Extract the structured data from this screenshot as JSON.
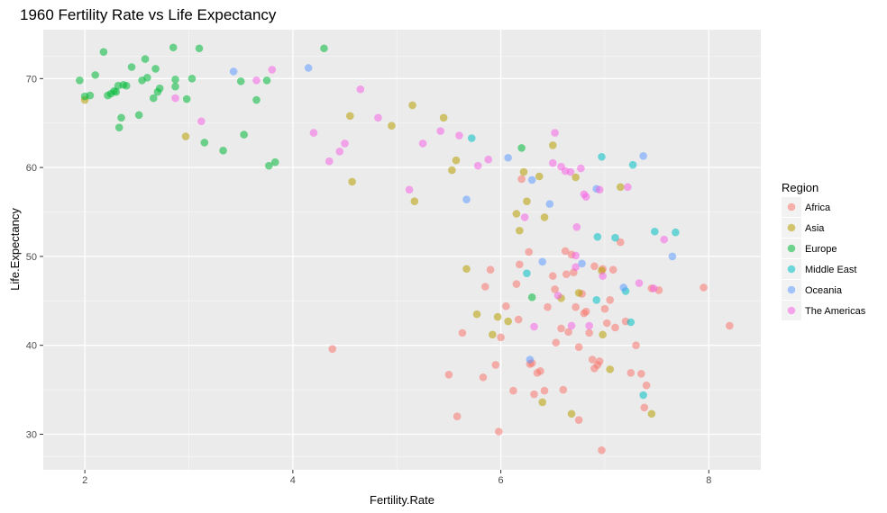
{
  "chart_data": {
    "type": "scatter",
    "title": "1960 Fertility Rate vs Life Expectancy",
    "xlabel": "Fertility.Rate",
    "ylabel": "Life.Expectancy",
    "xlim": [
      1.6,
      8.5
    ],
    "ylim": [
      26,
      75.5
    ],
    "x_ticks": [
      2,
      4,
      6,
      8
    ],
    "y_ticks": [
      30,
      40,
      50,
      60,
      70
    ],
    "grid": true,
    "legend_title": "Region",
    "legend_position": "right",
    "series": [
      {
        "name": "Africa",
        "color": "#F8766D",
        "points": [
          [
            4.38,
            39.6
          ],
          [
            5.5,
            36.7
          ],
          [
            5.58,
            32.0
          ],
          [
            5.63,
            41.4
          ],
          [
            5.83,
            36.4
          ],
          [
            5.85,
            46.6
          ],
          [
            5.9,
            48.5
          ],
          [
            5.95,
            37.8
          ],
          [
            5.98,
            30.3
          ],
          [
            6.0,
            40.9
          ],
          [
            6.12,
            34.9
          ],
          [
            6.15,
            46.9
          ],
          [
            6.18,
            49.1
          ],
          [
            6.2,
            58.7
          ],
          [
            6.27,
            50.5
          ],
          [
            6.28,
            37.9
          ],
          [
            6.3,
            38.0
          ],
          [
            6.32,
            34.5
          ],
          [
            6.35,
            36.9
          ],
          [
            6.38,
            37.1
          ],
          [
            6.42,
            34.9
          ],
          [
            6.45,
            44.3
          ],
          [
            6.5,
            47.8
          ],
          [
            6.53,
            40.3
          ],
          [
            6.58,
            41.9
          ],
          [
            6.6,
            35.0
          ],
          [
            6.62,
            50.6
          ],
          [
            6.63,
            48.0
          ],
          [
            6.65,
            41.5
          ],
          [
            6.68,
            50.2
          ],
          [
            6.7,
            48.2
          ],
          [
            6.72,
            44.3
          ],
          [
            6.75,
            31.6
          ],
          [
            6.78,
            45.8
          ],
          [
            6.8,
            43.6
          ],
          [
            6.82,
            43.8
          ],
          [
            6.85,
            41.4
          ],
          [
            6.88,
            38.4
          ],
          [
            6.9,
            37.4
          ],
          [
            6.9,
            48.9
          ],
          [
            6.93,
            37.8
          ],
          [
            6.95,
            38.2
          ],
          [
            6.97,
            28.2
          ],
          [
            6.98,
            48.6
          ],
          [
            7.0,
            44.1
          ],
          [
            7.02,
            42.5
          ],
          [
            7.05,
            45.1
          ],
          [
            7.08,
            48.5
          ],
          [
            7.1,
            42.0
          ],
          [
            7.15,
            51.6
          ],
          [
            7.2,
            42.7
          ],
          [
            7.25,
            36.9
          ],
          [
            7.3,
            40.0
          ],
          [
            7.35,
            36.8
          ],
          [
            7.38,
            33.0
          ],
          [
            7.4,
            35.5
          ],
          [
            7.45,
            46.4
          ],
          [
            7.52,
            46.2
          ],
          [
            7.95,
            46.5
          ],
          [
            8.2,
            42.2
          ],
          [
            6.52,
            46.3
          ],
          [
            6.75,
            39.8
          ],
          [
            6.17,
            42.9
          ],
          [
            6.05,
            44.4
          ]
        ]
      },
      {
        "name": "Asia",
        "color": "#B79F00",
        "points": [
          [
            2.0,
            67.6
          ],
          [
            2.97,
            63.5
          ],
          [
            4.55,
            65.8
          ],
          [
            4.57,
            58.4
          ],
          [
            4.95,
            64.7
          ],
          [
            5.15,
            67.0
          ],
          [
            5.17,
            56.2
          ],
          [
            5.45,
            65.6
          ],
          [
            5.53,
            59.7
          ],
          [
            5.57,
            60.8
          ],
          [
            5.67,
            48.6
          ],
          [
            5.77,
            43.5
          ],
          [
            5.92,
            41.2
          ],
          [
            5.97,
            43.2
          ],
          [
            6.07,
            42.7
          ],
          [
            6.15,
            54.8
          ],
          [
            6.18,
            52.9
          ],
          [
            6.22,
            59.5
          ],
          [
            6.25,
            56.2
          ],
          [
            6.37,
            59.0
          ],
          [
            6.4,
            33.6
          ],
          [
            6.42,
            54.4
          ],
          [
            6.5,
            62.5
          ],
          [
            6.58,
            45.3
          ],
          [
            6.68,
            32.3
          ],
          [
            6.72,
            58.9
          ],
          [
            6.75,
            45.9
          ],
          [
            6.97,
            48.4
          ],
          [
            6.98,
            41.2
          ],
          [
            7.05,
            37.3
          ],
          [
            7.15,
            57.8
          ],
          [
            7.45,
            32.3
          ]
        ]
      },
      {
        "name": "Europe",
        "color": "#00BA38",
        "points": [
          [
            1.95,
            69.8
          ],
          [
            2.0,
            68.0
          ],
          [
            2.05,
            68.1
          ],
          [
            2.1,
            70.4
          ],
          [
            2.18,
            73.0
          ],
          [
            2.22,
            68.1
          ],
          [
            2.25,
            68.3
          ],
          [
            2.28,
            68.6
          ],
          [
            2.3,
            68.5
          ],
          [
            2.32,
            69.2
          ],
          [
            2.33,
            64.5
          ],
          [
            2.35,
            65.6
          ],
          [
            2.37,
            69.3
          ],
          [
            2.4,
            69.2
          ],
          [
            2.45,
            71.3
          ],
          [
            2.52,
            65.9
          ],
          [
            2.55,
            69.8
          ],
          [
            2.58,
            72.2
          ],
          [
            2.6,
            70.1
          ],
          [
            2.66,
            67.8
          ],
          [
            2.68,
            71.1
          ],
          [
            2.7,
            68.5
          ],
          [
            2.72,
            68.9
          ],
          [
            2.85,
            73.5
          ],
          [
            2.87,
            69.1
          ],
          [
            2.87,
            69.9
          ],
          [
            2.98,
            67.7
          ],
          [
            3.03,
            70.0
          ],
          [
            3.1,
            73.4
          ],
          [
            3.15,
            62.8
          ],
          [
            3.33,
            61.9
          ],
          [
            3.5,
            69.7
          ],
          [
            3.53,
            63.7
          ],
          [
            3.65,
            67.6
          ],
          [
            3.75,
            69.8
          ],
          [
            3.77,
            60.2
          ],
          [
            3.83,
            60.6
          ],
          [
            4.3,
            73.4
          ],
          [
            6.2,
            62.2
          ],
          [
            6.3,
            45.4
          ]
        ]
      },
      {
        "name": "Middle East",
        "color": "#00BFC4",
        "points": [
          [
            5.72,
            63.3
          ],
          [
            6.25,
            48.1
          ],
          [
            6.92,
            45.1
          ],
          [
            6.93,
            52.2
          ],
          [
            6.97,
            61.2
          ],
          [
            7.1,
            52.1
          ],
          [
            7.2,
            46.1
          ],
          [
            7.25,
            42.6
          ],
          [
            7.27,
            60.3
          ],
          [
            7.37,
            34.4
          ],
          [
            7.48,
            52.8
          ],
          [
            7.68,
            52.7
          ]
        ]
      },
      {
        "name": "Oceania",
        "color": "#619CFF",
        "points": [
          [
            3.43,
            70.8
          ],
          [
            4.15,
            71.2
          ],
          [
            5.67,
            56.4
          ],
          [
            6.07,
            61.1
          ],
          [
            6.28,
            38.4
          ],
          [
            6.3,
            58.6
          ],
          [
            6.4,
            49.4
          ],
          [
            6.47,
            55.9
          ],
          [
            6.78,
            49.2
          ],
          [
            6.92,
            57.6
          ],
          [
            7.18,
            46.5
          ],
          [
            7.37,
            61.3
          ],
          [
            7.65,
            50.0
          ]
        ]
      },
      {
        "name": "The Americas",
        "color": "#F564E3",
        "points": [
          [
            2.87,
            67.8
          ],
          [
            3.12,
            65.2
          ],
          [
            3.65,
            69.8
          ],
          [
            3.8,
            71.0
          ],
          [
            4.2,
            63.9
          ],
          [
            4.35,
            60.7
          ],
          [
            4.45,
            61.8
          ],
          [
            4.5,
            62.7
          ],
          [
            4.65,
            68.8
          ],
          [
            4.82,
            65.6
          ],
          [
            5.12,
            57.5
          ],
          [
            5.25,
            62.7
          ],
          [
            5.42,
            64.1
          ],
          [
            5.6,
            63.6
          ],
          [
            5.78,
            60.2
          ],
          [
            5.88,
            60.9
          ],
          [
            6.23,
            54.4
          ],
          [
            6.32,
            42.1
          ],
          [
            6.5,
            60.5
          ],
          [
            6.52,
            63.9
          ],
          [
            6.55,
            45.6
          ],
          [
            6.58,
            60.1
          ],
          [
            6.62,
            59.6
          ],
          [
            6.67,
            59.5
          ],
          [
            6.72,
            48.8
          ],
          [
            6.73,
            53.3
          ],
          [
            6.77,
            59.9
          ],
          [
            6.8,
            57.0
          ],
          [
            6.82,
            56.7
          ],
          [
            6.85,
            42.2
          ],
          [
            6.95,
            57.5
          ],
          [
            6.98,
            47.8
          ],
          [
            7.22,
            57.8
          ],
          [
            7.33,
            47.0
          ],
          [
            7.47,
            46.4
          ],
          [
            7.57,
            51.9
          ],
          [
            6.68,
            42.2
          ],
          [
            6.72,
            50.1
          ]
        ]
      }
    ]
  }
}
